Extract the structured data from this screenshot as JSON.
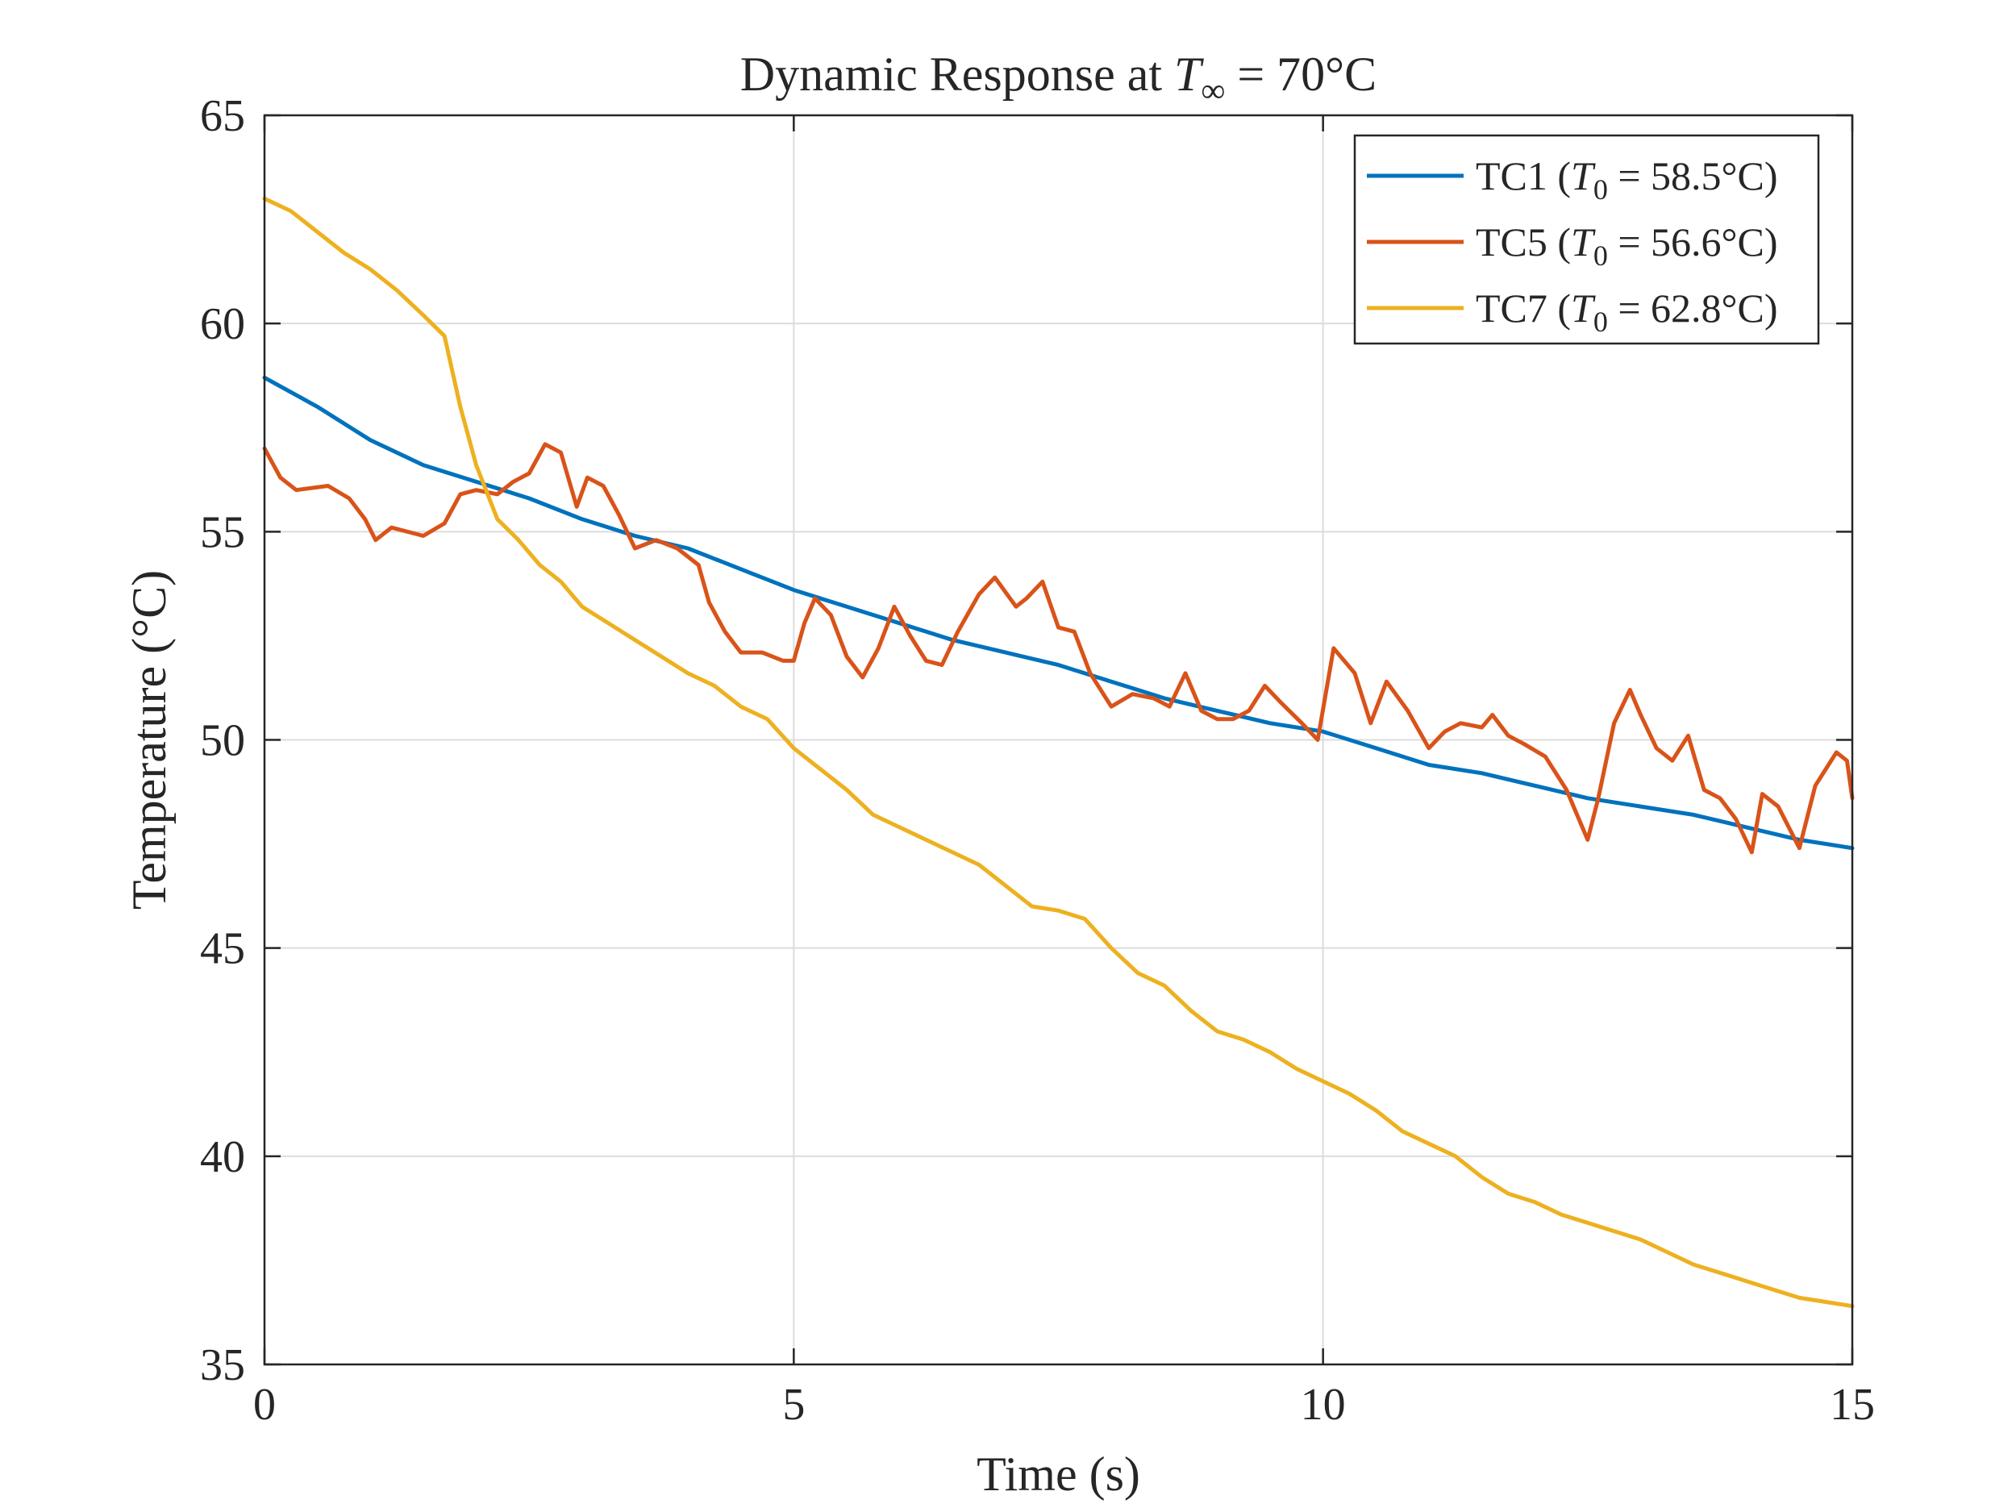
{
  "chart_data": {
    "type": "line",
    "title": {
      "prefix": "Dynamic Response at ",
      "symbol": "T",
      "subscript": "∞",
      "suffix": " = 70°C"
    },
    "xlabel": "Time (s)",
    "ylabel": "Temperature (°C)",
    "xlim": [
      0,
      15
    ],
    "ylim": [
      35,
      65
    ],
    "xticks": [
      0,
      5,
      10,
      15
    ],
    "yticks": [
      35,
      40,
      45,
      50,
      55,
      60,
      65
    ],
    "grid": true,
    "legend_position": "top-right",
    "series": [
      {
        "name": "TC1",
        "legend": {
          "prefix": "TC1 (",
          "symbol": "T",
          "subscript": "0",
          "suffix": " = 58.5°C)"
        },
        "color": "#0072BD",
        "x": [
          0,
          0.5,
          1,
          1.5,
          2,
          2.5,
          3,
          3.5,
          4,
          4.5,
          5,
          5.5,
          6,
          6.5,
          7,
          7.5,
          8,
          8.5,
          9,
          9.5,
          10,
          10.5,
          11,
          11.5,
          12,
          12.5,
          13,
          13.5,
          14,
          14.5,
          15
        ],
        "y": [
          58.7,
          58.0,
          57.2,
          56.6,
          56.2,
          55.8,
          55.3,
          54.9,
          54.6,
          54.1,
          53.6,
          53.2,
          52.8,
          52.4,
          52.1,
          51.8,
          51.4,
          51.0,
          50.7,
          50.4,
          50.2,
          49.8,
          49.4,
          49.2,
          48.9,
          48.6,
          48.4,
          48.2,
          47.9,
          47.6,
          47.4
        ]
      },
      {
        "name": "TC5",
        "legend": {
          "prefix": "TC5 (",
          "symbol": "T",
          "subscript": "0",
          "suffix": " = 56.6°C)"
        },
        "color": "#D95319",
        "x": [
          0,
          0.15,
          0.3,
          0.6,
          0.8,
          0.95,
          1.05,
          1.2,
          1.5,
          1.7,
          1.85,
          2.0,
          2.2,
          2.35,
          2.5,
          2.65,
          2.8,
          2.95,
          3.05,
          3.2,
          3.35,
          3.5,
          3.7,
          3.9,
          4.1,
          4.2,
          4.35,
          4.5,
          4.7,
          4.9,
          5.0,
          5.1,
          5.2,
          5.35,
          5.5,
          5.65,
          5.8,
          5.95,
          6.1,
          6.25,
          6.4,
          6.55,
          6.75,
          6.9,
          7.1,
          7.2,
          7.35,
          7.5,
          7.65,
          7.8,
          8.0,
          8.2,
          8.4,
          8.55,
          8.7,
          8.85,
          9.0,
          9.15,
          9.3,
          9.45,
          9.6,
          9.8,
          9.95,
          10.1,
          10.3,
          10.45,
          10.6,
          10.8,
          11.0,
          11.15,
          11.3,
          11.5,
          11.6,
          11.75,
          11.9,
          12.1,
          12.3,
          12.5,
          12.6,
          12.75,
          12.9,
          13.0,
          13.15,
          13.3,
          13.45,
          13.6,
          13.75,
          13.9,
          14.05,
          14.15,
          14.3,
          14.5,
          14.65,
          14.85,
          14.95,
          15.0
        ],
        "y": [
          57.0,
          56.3,
          56.0,
          56.1,
          55.8,
          55.3,
          54.8,
          55.1,
          54.9,
          55.2,
          55.9,
          56.0,
          55.9,
          56.2,
          56.4,
          57.1,
          56.9,
          55.6,
          56.3,
          56.1,
          55.4,
          54.6,
          54.8,
          54.6,
          54.2,
          53.3,
          52.6,
          52.1,
          52.1,
          51.9,
          51.9,
          52.8,
          53.4,
          53.0,
          52.0,
          51.5,
          52.2,
          53.2,
          52.5,
          51.9,
          51.8,
          52.6,
          53.5,
          53.9,
          53.2,
          53.4,
          53.8,
          52.7,
          52.6,
          51.6,
          50.8,
          51.1,
          51.0,
          50.8,
          51.6,
          50.7,
          50.5,
          50.5,
          50.7,
          51.3,
          50.9,
          50.4,
          50.0,
          52.2,
          51.6,
          50.4,
          51.4,
          50.7,
          49.8,
          50.2,
          50.4,
          50.3,
          50.6,
          50.1,
          49.9,
          49.6,
          48.8,
          47.6,
          48.6,
          50.4,
          51.2,
          50.6,
          49.8,
          49.5,
          50.1,
          48.8,
          48.6,
          48.1,
          47.3,
          48.7,
          48.4,
          47.4,
          48.9,
          49.7,
          49.5,
          48.6
        ]
      },
      {
        "name": "TC7",
        "legend": {
          "prefix": "TC7 (",
          "symbol": "T",
          "subscript": "0",
          "suffix": " = 62.8°C)"
        },
        "color": "#EDB120",
        "x": [
          0,
          0.25,
          0.5,
          0.75,
          1.0,
          1.25,
          1.5,
          1.7,
          1.85,
          2.0,
          2.2,
          2.4,
          2.6,
          2.8,
          3.0,
          3.25,
          3.5,
          3.75,
          4.0,
          4.25,
          4.5,
          4.75,
          5.0,
          5.25,
          5.5,
          5.75,
          6.0,
          6.25,
          6.5,
          6.75,
          7.0,
          7.25,
          7.5,
          7.75,
          8.0,
          8.25,
          8.5,
          8.75,
          9.0,
          9.25,
          9.5,
          9.75,
          10.0,
          10.25,
          10.5,
          10.75,
          11.0,
          11.25,
          11.5,
          11.75,
          12.0,
          12.25,
          12.5,
          12.75,
          13.0,
          13.25,
          13.5,
          13.75,
          14.0,
          14.25,
          14.5,
          14.75,
          15.0
        ],
        "y": [
          63.0,
          62.7,
          62.2,
          61.7,
          61.3,
          60.8,
          60.2,
          59.7,
          58.0,
          56.6,
          55.3,
          54.8,
          54.2,
          53.8,
          53.2,
          52.8,
          52.4,
          52.0,
          51.6,
          51.3,
          50.8,
          50.5,
          49.8,
          49.3,
          48.8,
          48.2,
          47.9,
          47.6,
          47.3,
          47.0,
          46.5,
          46.0,
          45.9,
          45.7,
          45.0,
          44.4,
          44.1,
          43.5,
          43.0,
          42.8,
          42.5,
          42.1,
          41.8,
          41.5,
          41.1,
          40.6,
          40.3,
          40.0,
          39.5,
          39.1,
          38.9,
          38.6,
          38.4,
          38.2,
          38.0,
          37.7,
          37.4,
          37.2,
          37.0,
          36.8,
          36.6,
          36.5,
          36.4
        ]
      }
    ]
  }
}
